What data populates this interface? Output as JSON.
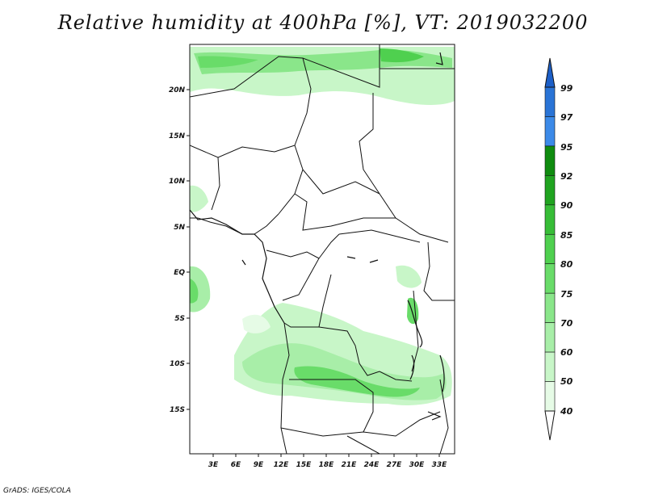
{
  "title": "Relative humidity at 400hPa [%], VT: 2019032200",
  "credit": "GrADS: IGES/COLA",
  "map": {
    "lon_labels": [
      "3E",
      "6E",
      "9E",
      "12E",
      "15E",
      "18E",
      "21E",
      "24E",
      "27E",
      "30E",
      "33E"
    ],
    "lat_labels": [
      "20N",
      "15N",
      "10N",
      "5N",
      "EQ",
      "5S",
      "10S",
      "15S"
    ]
  },
  "colorbar": {
    "levels": [
      "99",
      "97",
      "95",
      "92",
      "90",
      "85",
      "80",
      "75",
      "70",
      "60",
      "50",
      "40"
    ],
    "colors": [
      "#1c5fc8",
      "#2a74d6",
      "#3c8ae8",
      "#0f8c0f",
      "#20a420",
      "#37bd37",
      "#4fd04f",
      "#69dc69",
      "#8ae68a",
      "#a8eea8",
      "#c8f6c8",
      "#e6fbe6"
    ]
  }
}
